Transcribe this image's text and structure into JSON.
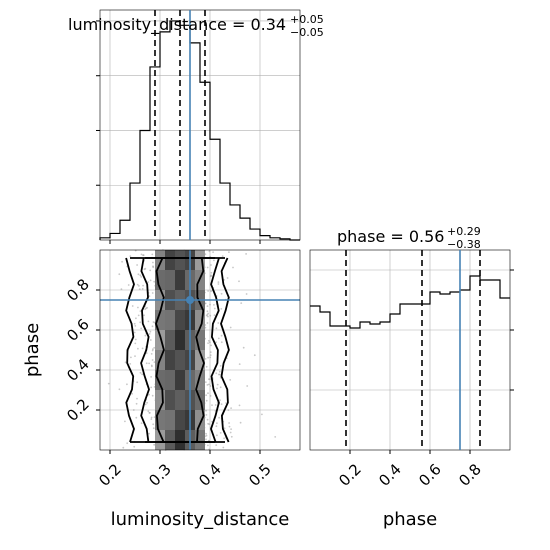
{
  "chart_data": [
    {
      "type": "histogram",
      "panel": "luminosity_distance marginal",
      "title": {
        "prefix": "luminosity_distance = 0.34",
        "plus": "+0.05",
        "minus": "−0.05"
      },
      "x": {
        "range": [
          0.18,
          0.58
        ],
        "ticks": [
          0.2,
          0.3,
          0.4,
          0.5
        ]
      },
      "bins": [
        0.18,
        0.2,
        0.22,
        0.24,
        0.26,
        0.28,
        0.3,
        0.32,
        0.34,
        0.36,
        0.38,
        0.4,
        0.42,
        0.44,
        0.46,
        0.48,
        0.5,
        0.52,
        0.54,
        0.56,
        0.58
      ],
      "counts": [
        0.01,
        0.03,
        0.09,
        0.26,
        0.5,
        0.79,
        0.95,
        1.0,
        0.98,
        0.9,
        0.72,
        0.46,
        0.26,
        0.16,
        0.1,
        0.05,
        0.02,
        0.01,
        0.005,
        0.0
      ],
      "ylim": [
        0,
        1.05
      ],
      "quantiles": [
        0.29,
        0.34,
        0.39
      ],
      "truth": 0.36,
      "grid": true
    },
    {
      "type": "histogram",
      "panel": "phase marginal",
      "title": {
        "prefix": "phase = 0.56",
        "plus": "+0.29",
        "minus": "−0.38"
      },
      "x": {
        "range": [
          0.0,
          1.0
        ],
        "ticks": [
          0.2,
          0.4,
          0.6,
          0.8
        ],
        "label": "phase"
      },
      "bins": [
        0.0,
        0.05,
        0.1,
        0.15,
        0.2,
        0.25,
        0.3,
        0.35,
        0.4,
        0.45,
        0.5,
        0.55,
        0.6,
        0.65,
        0.7,
        0.75,
        0.8,
        0.85,
        0.9,
        0.95,
        1.0
      ],
      "counts": [
        0.72,
        0.69,
        0.62,
        0.62,
        0.61,
        0.64,
        0.63,
        0.64,
        0.68,
        0.73,
        0.73,
        0.73,
        0.79,
        0.78,
        0.79,
        0.8,
        0.87,
        0.85,
        0.85,
        0.76
      ],
      "ylim": [
        0.0,
        1.0
      ],
      "quantiles": [
        0.18,
        0.56,
        0.85
      ],
      "truth": 0.75,
      "grid": true
    },
    {
      "type": "scatter",
      "panel": "luminosity_distance vs phase 2D",
      "x": {
        "range": [
          0.18,
          0.58
        ],
        "ticks": [
          0.2,
          0.3,
          0.4,
          0.5
        ],
        "label": "luminosity_distance"
      },
      "y": {
        "range": [
          0.0,
          1.0
        ],
        "ticks": [
          0.2,
          0.4,
          0.6,
          0.8
        ],
        "label": "phase"
      },
      "density_columns": [
        {
          "x0": 0.29,
          "x1": 0.31,
          "level": 0.55
        },
        {
          "x0": 0.31,
          "x1": 0.33,
          "level": 0.75
        },
        {
          "x0": 0.33,
          "x1": 0.35,
          "level": 0.85
        },
        {
          "x0": 0.35,
          "x1": 0.37,
          "level": 0.8
        },
        {
          "x0": 0.37,
          "x1": 0.39,
          "level": 0.55
        }
      ],
      "contour_x_bounds": [
        {
          "left": 0.24,
          "right": 0.43
        },
        {
          "left": 0.27,
          "right": 0.41
        },
        {
          "left": 0.3,
          "right": 0.38
        }
      ],
      "truth": {
        "x": 0.36,
        "y": 0.75
      },
      "grid": true
    }
  ],
  "colors": {
    "truth": "#4682b4",
    "line": "#000000",
    "grid": "#b0b0b0",
    "background": "#ffffff"
  }
}
